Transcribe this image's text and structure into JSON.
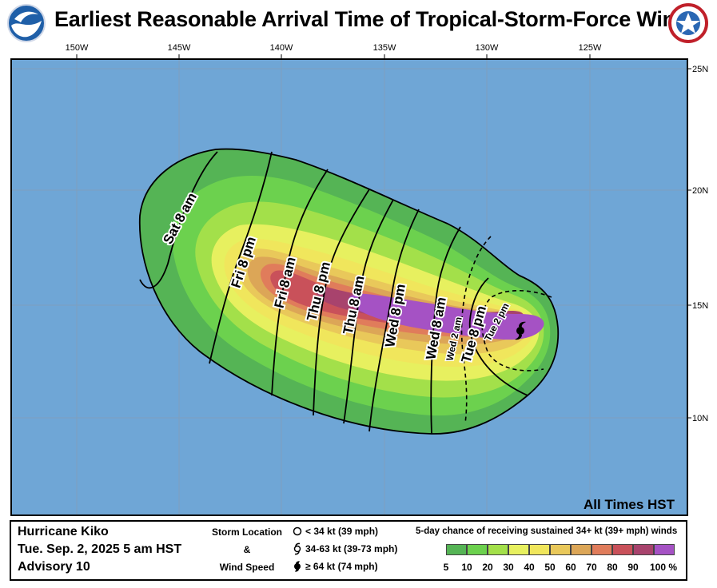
{
  "title": "Earliest Reasonable Arrival Time of Tropical-Storm-Force Winds",
  "logos": {
    "left": "noaa-logo",
    "right": "nws-logo"
  },
  "longitude_labels": [
    "150W",
    "145W",
    "140W",
    "135W",
    "130W",
    "125W"
  ],
  "latitude_labels": [
    "25N",
    "20N",
    "15N",
    "10N"
  ],
  "contour_labels": [
    "Sat 8 am",
    "Fri 8 pm",
    "Fri 8 am",
    "Thu 8 pm",
    "Thu 8 am",
    "Wed 8 pm",
    "Wed 8 am",
    "Tue 8 pm",
    "Wed 2 am",
    "Tue 2 pm"
  ],
  "time_zone_note": "All Times HST",
  "storm": {
    "name": "Hurricane Kiko",
    "date": "Tue. Sep. 2, 2025  5 am HST",
    "advisory": "Advisory 10",
    "position": {
      "lon": -128.2,
      "lat": 13.8
    }
  },
  "storm_location_legend": {
    "label_top": "Storm Location",
    "label_mid": "&",
    "label_bottom": "Wind Speed",
    "entries": [
      {
        "icon": "open-circle-icon",
        "text": "< 34 kt (39 mph)"
      },
      {
        "icon": "tropical-storm-icon",
        "text": "34-63 kt (39-73 mph)"
      },
      {
        "icon": "hurricane-icon",
        "text": "≥ 64 kt (74 mph)"
      }
    ]
  },
  "probability_legend": {
    "title": "5-day chance of receiving sustained 34+ kt (39+ mph) winds",
    "ticks": [
      "5",
      "10",
      "20",
      "30",
      "40",
      "50",
      "60",
      "70",
      "80",
      "90",
      "100 %"
    ],
    "colors": [
      "#55b455",
      "#6cd14e",
      "#a3e04a",
      "#e7f05f",
      "#f0e65c",
      "#e9c85a",
      "#dca657",
      "#e07c5b",
      "#c9515a",
      "#a8436d",
      "#a552c4"
    ]
  },
  "colors": {
    "ocean": "#6fa6d6",
    "land_border": "#000000"
  }
}
